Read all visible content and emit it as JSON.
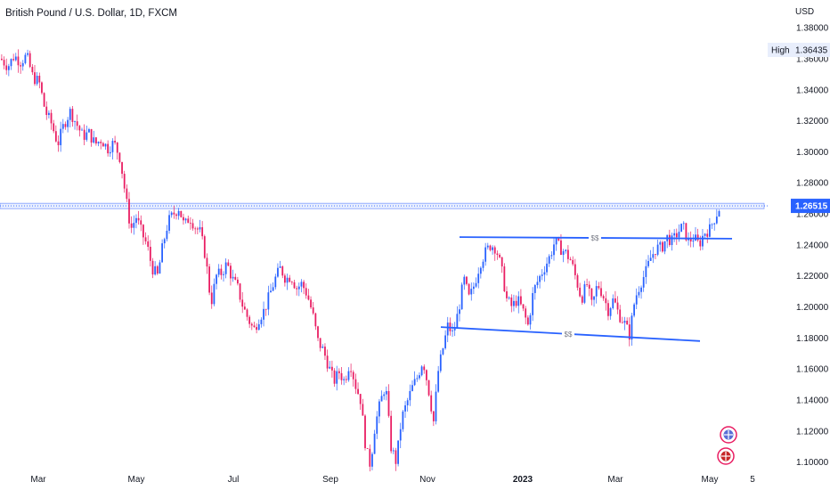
{
  "chart_data": {
    "type": "candlestick",
    "title": "British Pound / U.S. Dollar, 1D, FXCM",
    "currency": "USD",
    "ylim": [
      1.09,
      1.395
    ],
    "y_ticks": [
      "1.38000",
      "1.36000",
      "1.34000",
      "1.32000",
      "1.30000",
      "1.28000",
      "1.26000",
      "1.24000",
      "1.22000",
      "1.20000",
      "1.18000",
      "1.16000",
      "1.14000",
      "1.12000",
      "1.10000"
    ],
    "x_tick_labels": [
      {
        "label": "Mar",
        "bold": false
      },
      {
        "label": "May",
        "bold": false
      },
      {
        "label": "Jul",
        "bold": false
      },
      {
        "label": "Sep",
        "bold": false
      },
      {
        "label": "Nov",
        "bold": false
      },
      {
        "label": "2023",
        "bold": true
      },
      {
        "label": "Mar",
        "bold": false
      },
      {
        "label": "May",
        "bold": false
      },
      {
        "label": "5",
        "bold": false
      }
    ],
    "high": {
      "label": "High",
      "value": "1.36435"
    },
    "last_price": {
      "value": "1.26515",
      "numeric": 1.26515
    },
    "resistance_zone": {
      "from": 1.2651,
      "to": 1.2668
    },
    "price_path": [
      [
        0,
        1.36
      ],
      [
        8,
        1.355
      ],
      [
        15,
        1.362
      ],
      [
        22,
        1.358
      ],
      [
        29,
        1.362
      ],
      [
        36,
        1.348
      ],
      [
        43,
        1.345
      ],
      [
        50,
        1.326
      ],
      [
        57,
        1.318
      ],
      [
        64,
        1.305
      ],
      [
        71,
        1.318
      ],
      [
        78,
        1.326
      ],
      [
        85,
        1.318
      ],
      [
        92,
        1.31
      ],
      [
        99,
        1.312
      ],
      [
        106,
        1.305
      ],
      [
        113,
        1.308
      ],
      [
        120,
        1.302
      ],
      [
        127,
        1.306
      ],
      [
        134,
        1.296
      ],
      [
        141,
        1.268
      ],
      [
        146,
        1.25
      ],
      [
        152,
        1.258
      ],
      [
        158,
        1.248
      ],
      [
        164,
        1.24
      ],
      [
        170,
        1.225
      ],
      [
        176,
        1.22
      ],
      [
        182,
        1.24
      ],
      [
        188,
        1.255
      ],
      [
        194,
        1.26
      ],
      [
        200,
        1.264
      ],
      [
        206,
        1.252
      ],
      [
        212,
        1.258
      ],
      [
        218,
        1.252
      ],
      [
        224,
        1.248
      ],
      [
        230,
        1.232
      ],
      [
        236,
        1.202
      ],
      [
        242,
        1.22
      ],
      [
        248,
        1.222
      ],
      [
        254,
        1.228
      ],
      [
        260,
        1.218
      ],
      [
        266,
        1.212
      ],
      [
        272,
        1.2
      ],
      [
        278,
        1.192
      ],
      [
        284,
        1.185
      ],
      [
        290,
        1.193
      ],
      [
        296,
        1.198
      ],
      [
        302,
        1.208
      ],
      [
        308,
        1.218
      ],
      [
        314,
        1.225
      ],
      [
        320,
        1.218
      ],
      [
        326,
        1.22
      ],
      [
        332,
        1.212
      ],
      [
        338,
        1.215
      ],
      [
        344,
        1.208
      ],
      [
        350,
        1.196
      ],
      [
        356,
        1.178
      ],
      [
        362,
        1.172
      ],
      [
        368,
        1.162
      ],
      [
        374,
        1.152
      ],
      [
        380,
        1.158
      ],
      [
        386,
        1.152
      ],
      [
        392,
        1.165
      ],
      [
        398,
        1.15
      ],
      [
        404,
        1.14
      ],
      [
        410,
        1.108
      ],
      [
        415,
        1.098
      ],
      [
        420,
        1.123
      ],
      [
        426,
        1.138
      ],
      [
        432,
        1.15
      ],
      [
        438,
        1.11
      ],
      [
        444,
        1.1
      ],
      [
        450,
        1.128
      ],
      [
        456,
        1.138
      ],
      [
        462,
        1.148
      ],
      [
        468,
        1.155
      ],
      [
        474,
        1.166
      ],
      [
        480,
        1.148
      ],
      [
        486,
        1.126
      ],
      [
        491,
        1.158
      ],
      [
        496,
        1.172
      ],
      [
        502,
        1.188
      ],
      [
        508,
        1.182
      ],
      [
        514,
        1.198
      ],
      [
        520,
        1.218
      ],
      [
        526,
        1.205
      ],
      [
        532,
        1.215
      ],
      [
        538,
        1.228
      ],
      [
        544,
        1.235
      ],
      [
        550,
        1.24
      ],
      [
        556,
        1.238
      ],
      [
        562,
        1.225
      ],
      [
        568,
        1.205
      ],
      [
        574,
        1.2
      ],
      [
        580,
        1.205
      ],
      [
        586,
        1.198
      ],
      [
        592,
        1.188
      ],
      [
        598,
        1.21
      ],
      [
        604,
        1.218
      ],
      [
        610,
        1.225
      ],
      [
        616,
        1.232
      ],
      [
        622,
        1.242
      ],
      [
        628,
        1.238
      ],
      [
        634,
        1.235
      ],
      [
        640,
        1.23
      ],
      [
        646,
        1.218
      ],
      [
        652,
        1.205
      ],
      [
        658,
        1.215
      ],
      [
        664,
        1.2
      ],
      [
        670,
        1.215
      ],
      [
        676,
        1.208
      ],
      [
        682,
        1.198
      ],
      [
        688,
        1.205
      ],
      [
        694,
        1.195
      ],
      [
        700,
        1.19
      ],
      [
        706,
        1.182
      ],
      [
        712,
        1.205
      ],
      [
        718,
        1.215
      ],
      [
        724,
        1.222
      ],
      [
        730,
        1.232
      ],
      [
        736,
        1.238
      ],
      [
        742,
        1.238
      ],
      [
        748,
        1.245
      ],
      [
        754,
        1.242
      ],
      [
        760,
        1.248
      ],
      [
        766,
        1.252
      ],
      [
        772,
        1.242
      ],
      [
        778,
        1.245
      ],
      [
        784,
        1.24
      ],
      [
        790,
        1.248
      ],
      [
        796,
        1.25
      ],
      [
        802,
        1.258
      ],
      [
        808,
        1.265
      ]
    ],
    "annotations": [
      {
        "label": "$$",
        "line": [
          [
            516,
            1.245
          ],
          [
            822,
            1.244
          ]
        ],
        "label_x": 668
      },
      {
        "label": "$$",
        "line": [
          [
            495,
            1.187
          ],
          [
            786,
            1.178
          ]
        ],
        "label_x": 638
      }
    ],
    "colors": {
      "up": "#2962ff",
      "down": "#e91e63",
      "line": "#2962ff",
      "zone": "#c9d6ff"
    }
  }
}
